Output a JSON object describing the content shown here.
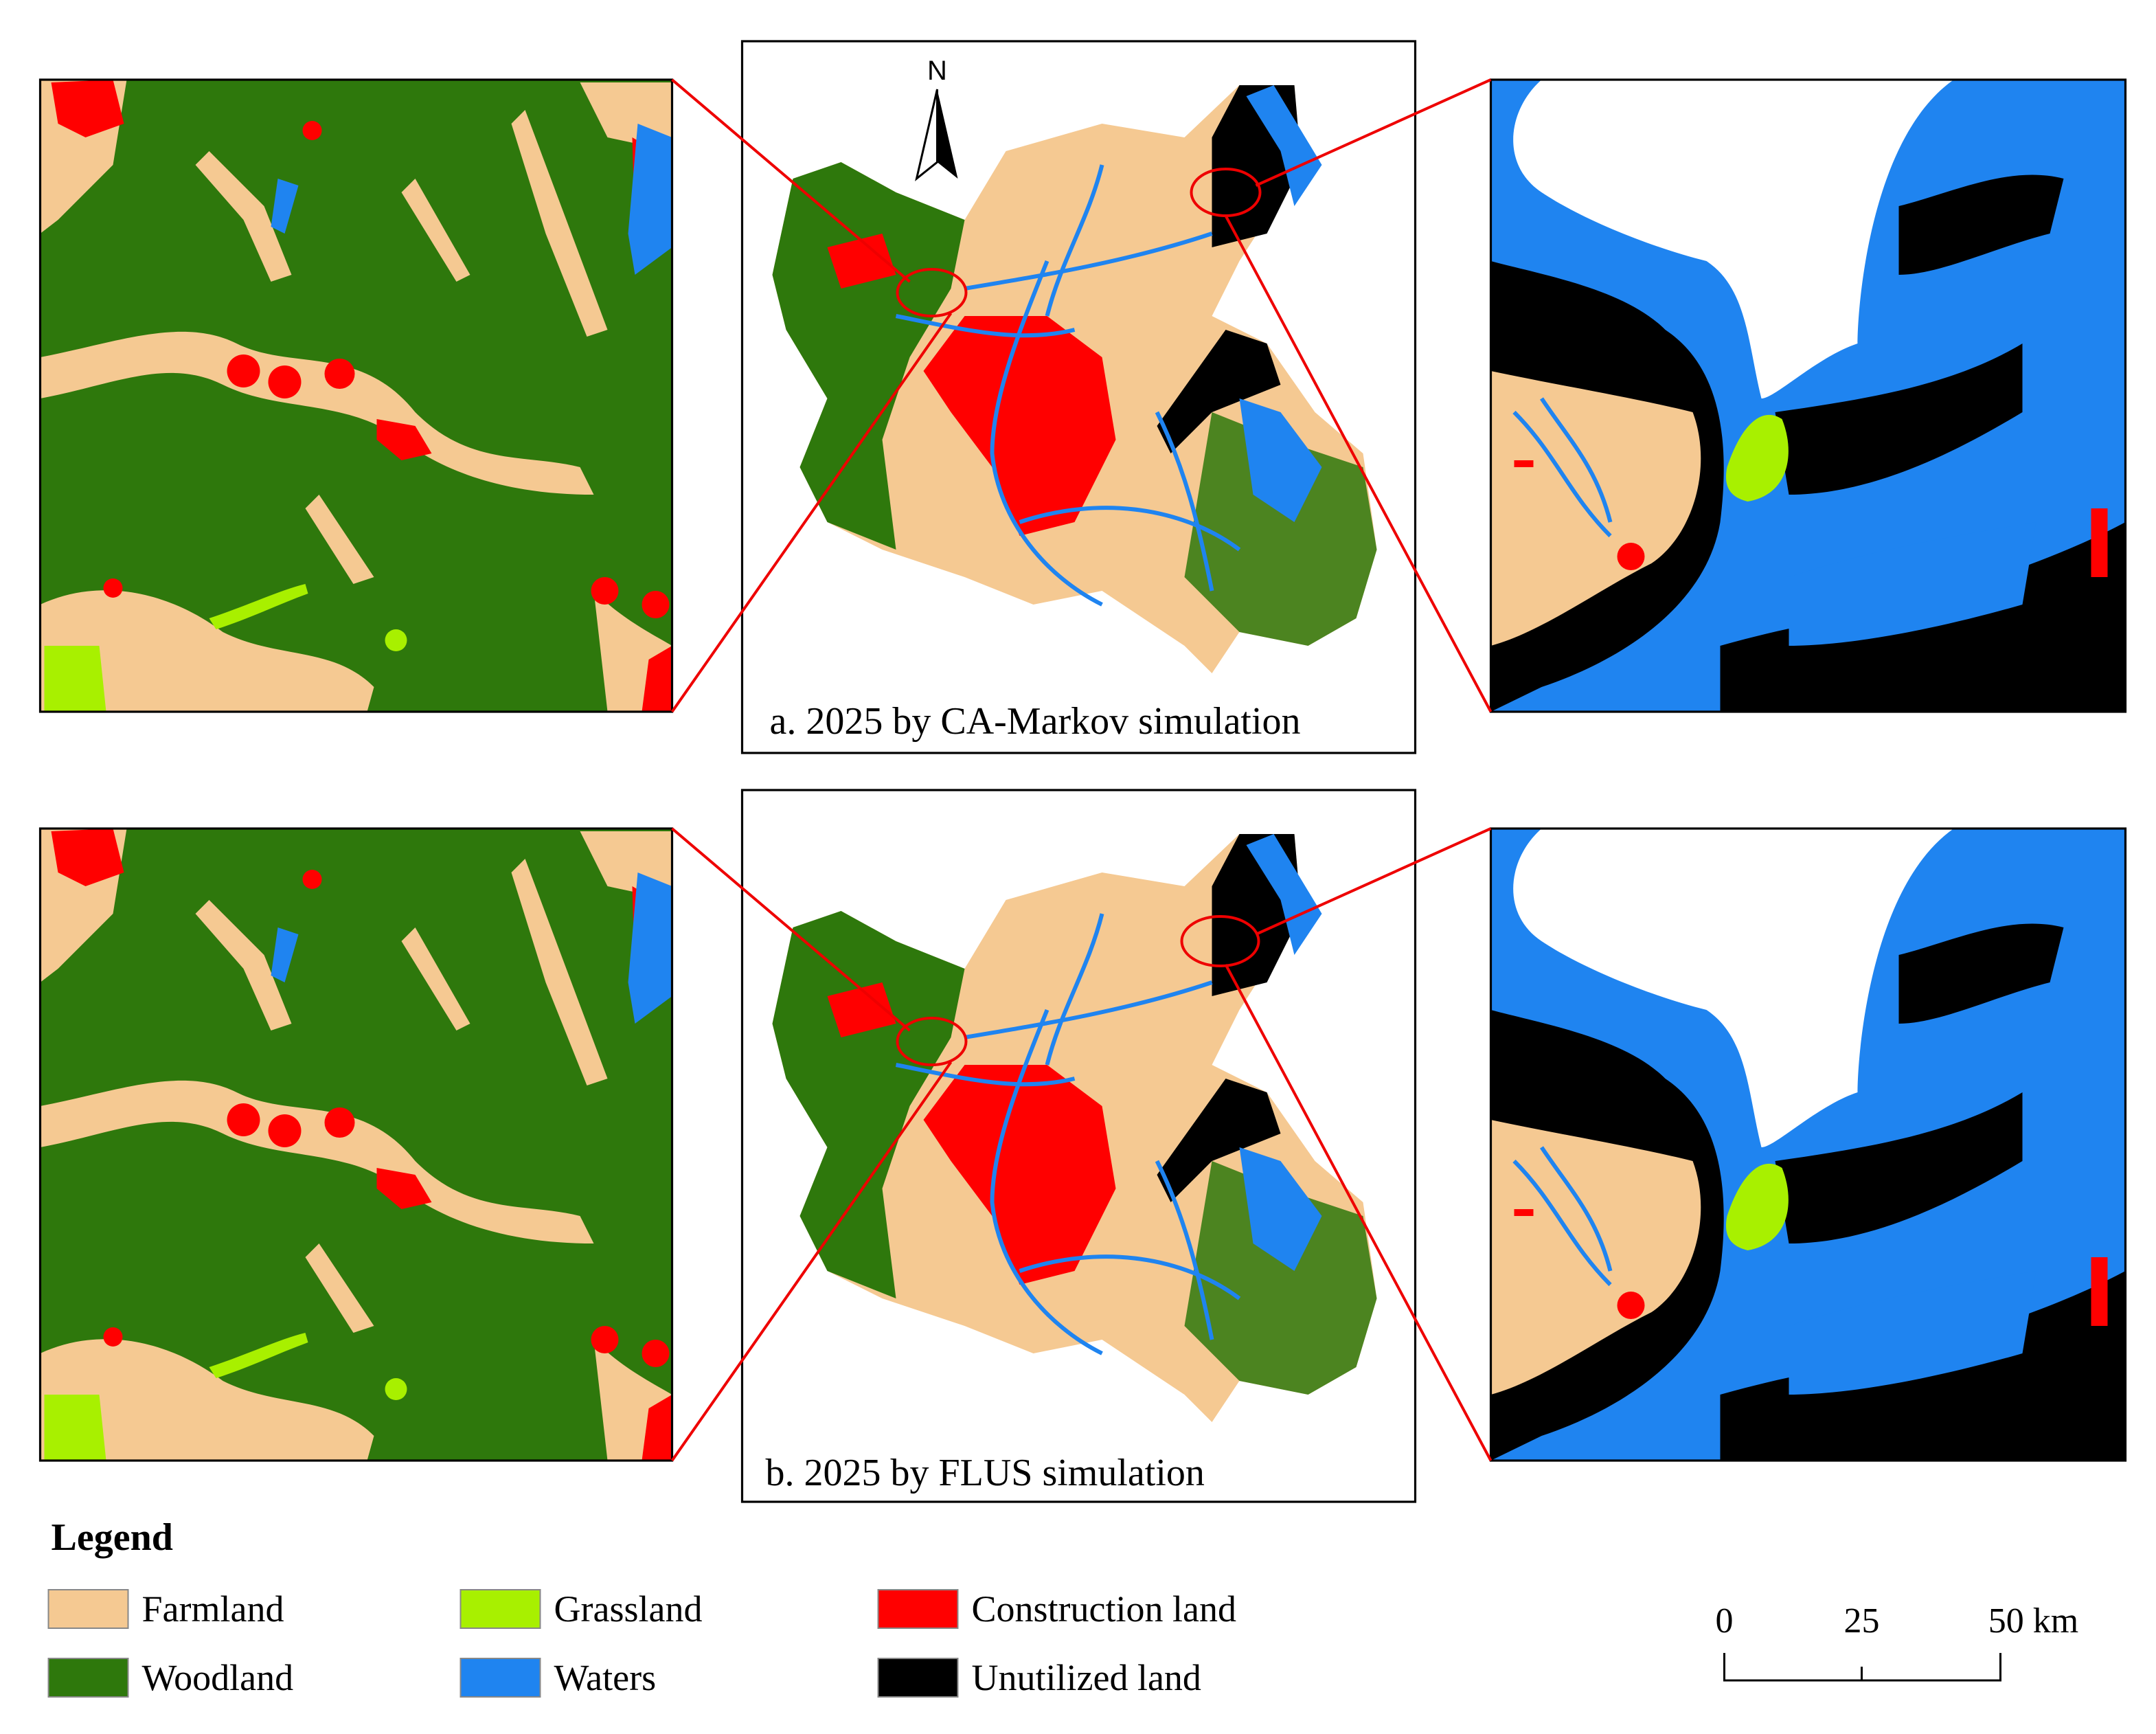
{
  "north_arrow": "N",
  "panels": [
    {
      "caption": "a. 2025 by CA-Markov simulation"
    },
    {
      "caption": "b. 2025 by FLUS simulation"
    }
  ],
  "legend": {
    "title": "Legend",
    "items": [
      {
        "label": "Farmland",
        "color": "#f5c992"
      },
      {
        "label": "Woodland",
        "color": "#2e780c"
      },
      {
        "label": "Grassland",
        "color": "#a8f000"
      },
      {
        "label": "Waters",
        "color": "#1f84f0"
      },
      {
        "label": "Construction land",
        "color": "#ff0000"
      },
      {
        "label": "Unutilized land",
        "color": "#000000"
      }
    ]
  },
  "scale_bar": {
    "labels": [
      "0",
      "25",
      "50 km"
    ]
  }
}
